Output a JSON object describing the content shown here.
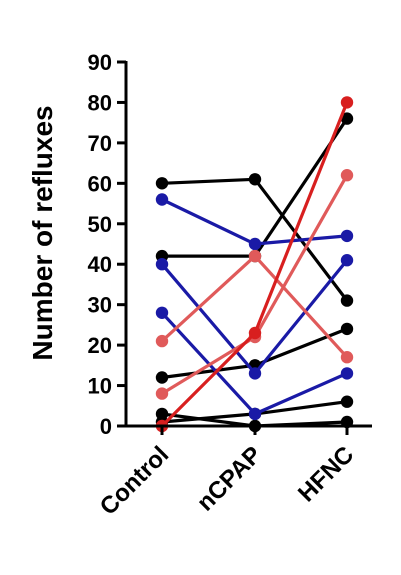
{
  "chart_data": {
    "type": "line",
    "title": "",
    "xlabel": "",
    "ylabel": "Number of refluxes",
    "categories": [
      "Control",
      "nCPAP",
      "HFNC"
    ],
    "ylim": [
      0,
      90
    ],
    "yticks": [
      0,
      10,
      20,
      30,
      40,
      50,
      60,
      70,
      80,
      90
    ],
    "grid": false,
    "series": [
      {
        "color": "#000000",
        "values": [
          60,
          61,
          31
        ]
      },
      {
        "color": "#000000",
        "values": [
          42,
          42,
          76
        ]
      },
      {
        "color": "#000000",
        "values": [
          12,
          15,
          24
        ]
      },
      {
        "color": "#000000",
        "values": [
          3,
          0,
          1
        ]
      },
      {
        "color": "#000000",
        "values": [
          1,
          3,
          6
        ]
      },
      {
        "color": "#1a1aa6",
        "values": [
          56,
          45,
          47
        ]
      },
      {
        "color": "#1a1aa6",
        "values": [
          40,
          13,
          41
        ]
      },
      {
        "color": "#1a1aa6",
        "values": [
          28,
          3,
          13
        ]
      },
      {
        "color": "#e05a5a",
        "values": [
          21,
          42,
          17
        ]
      },
      {
        "color": "#e05a5a",
        "values": [
          8,
          22,
          62
        ]
      },
      {
        "color": "#d81f1f",
        "values": [
          0,
          23,
          80
        ]
      }
    ]
  }
}
